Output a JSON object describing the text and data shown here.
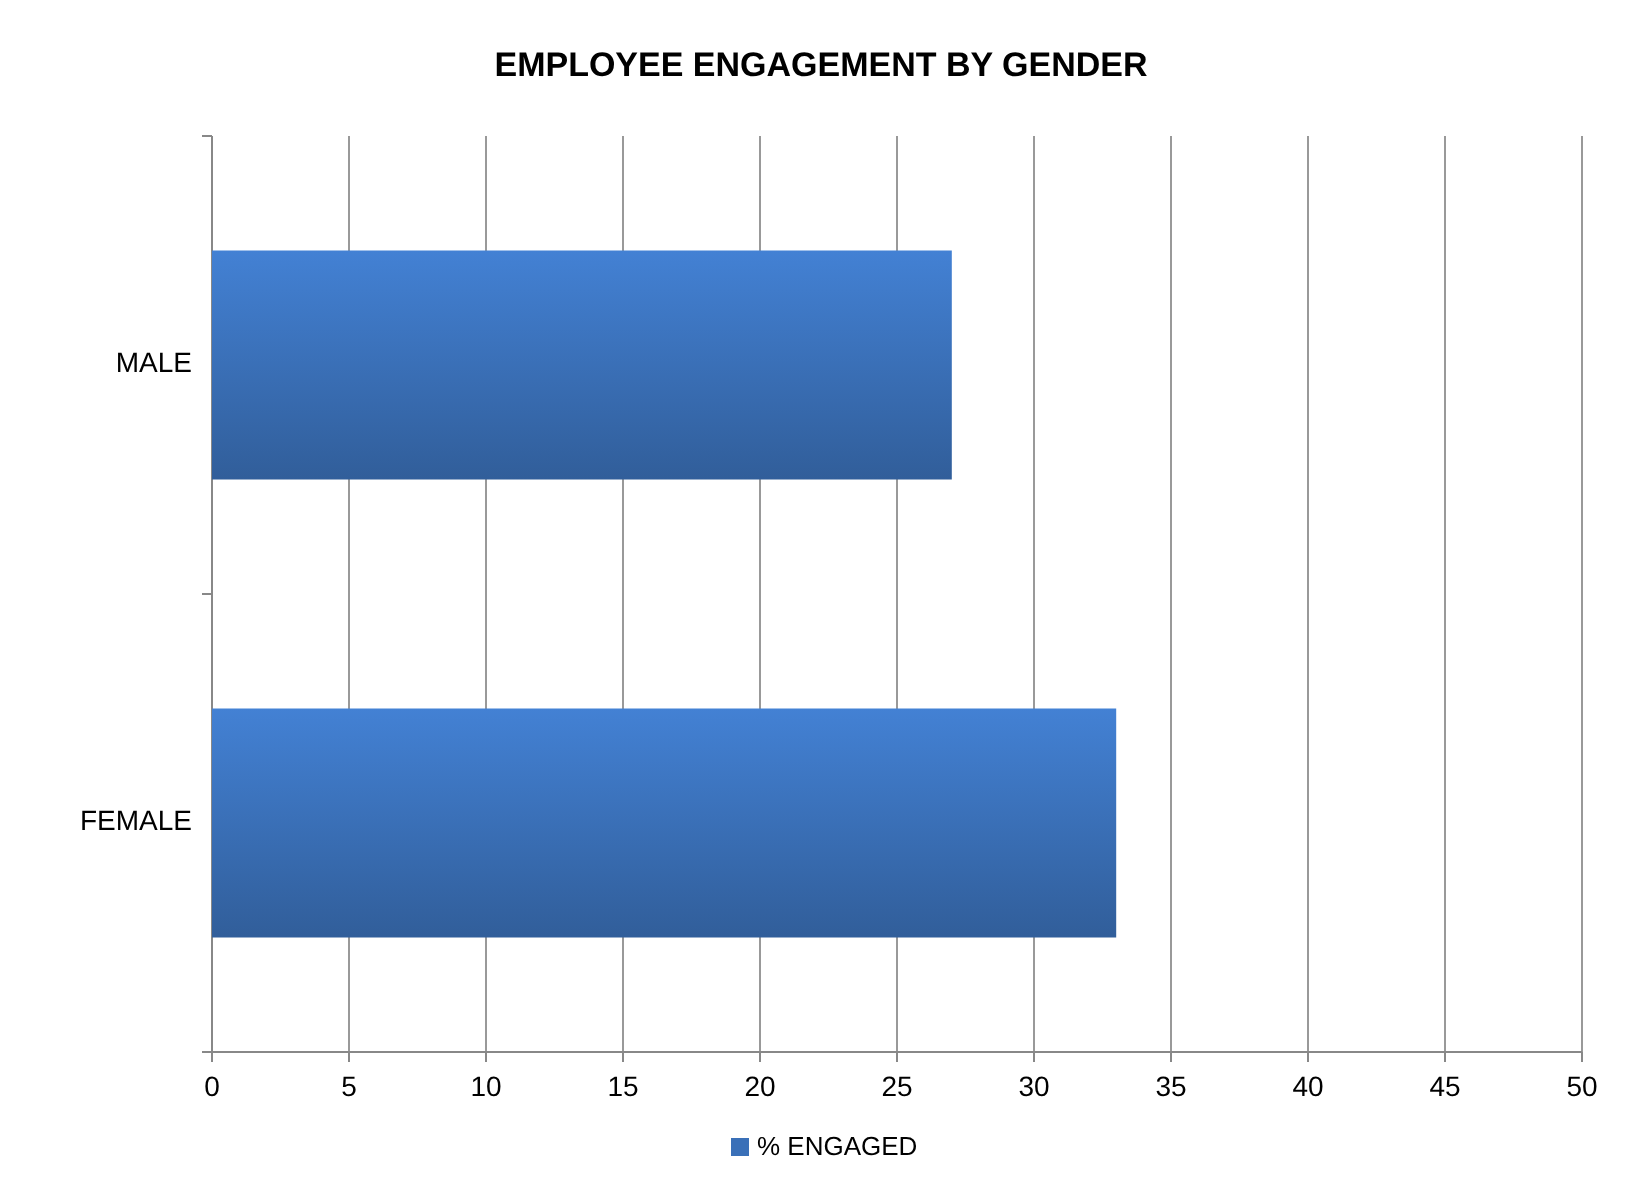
{
  "chart_data": {
    "type": "bar",
    "orientation": "horizontal",
    "title": "EMPLOYEE ENGAGEMENT BY GENDER",
    "categories": [
      "MALE",
      "FEMALE"
    ],
    "series": [
      {
        "name": "% ENGAGED",
        "color": "#3a70b8",
        "values": [
          27,
          33
        ]
      }
    ],
    "xlim": [
      0,
      50
    ],
    "xticks": [
      0,
      5,
      10,
      15,
      20,
      25,
      30,
      35,
      40,
      45,
      50
    ],
    "grid": "x",
    "legend": "bottom"
  }
}
